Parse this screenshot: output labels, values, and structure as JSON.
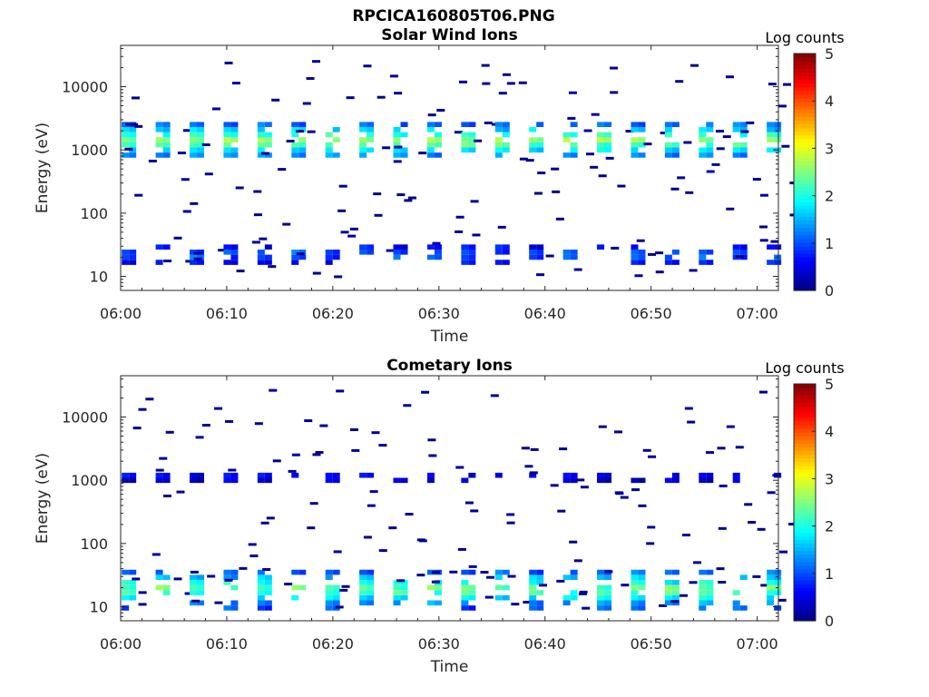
{
  "figure_title": "RPCICA160805T06.PNG",
  "colorbar": {
    "label": "Log counts",
    "ticks": [
      "0",
      "1",
      "2",
      "3",
      "4",
      "5"
    ],
    "range": [
      0,
      5
    ],
    "colormap": "jet"
  },
  "chart_data": [
    {
      "type": "heatmap",
      "title": "Solar Wind Ions",
      "xlabel": "Time",
      "ylabel": "Energy (eV)",
      "y_scale": "log",
      "ylim": [
        6,
        45000
      ],
      "x_ticks": [
        "06:00",
        "06:10",
        "06:20",
        "06:30",
        "06:40",
        "06:50",
        "07:00"
      ],
      "x_range_minutes": [
        0,
        62
      ],
      "y_ticks": [
        "10",
        "100",
        "1000",
        "10000"
      ],
      "color_label": "Log counts",
      "color_range": [
        0,
        5
      ],
      "bands": [
        {
          "name": "main",
          "energy_min": 700,
          "energy_max": 2800,
          "peak_log_counts": 2.9,
          "sweep_period_min": 3.2
        },
        {
          "name": "low",
          "energy_min": 14,
          "energy_max": 35,
          "peak_log_counts": 1.5,
          "sweep_period_min": 3.2
        }
      ]
    },
    {
      "type": "heatmap",
      "title": "Cometary Ions",
      "xlabel": "Time",
      "ylabel": "Energy (eV)",
      "y_scale": "log",
      "ylim": [
        6,
        45000
      ],
      "x_ticks": [
        "06:00",
        "06:10",
        "06:20",
        "06:30",
        "06:40",
        "06:50",
        "07:00"
      ],
      "x_range_minutes": [
        0,
        62
      ],
      "y_ticks": [
        "10",
        "100",
        "1000",
        "10000"
      ],
      "color_label": "Log counts",
      "color_range": [
        0,
        5
      ],
      "bands": [
        {
          "name": "main",
          "energy_min": 900,
          "energy_max": 1400,
          "peak_log_counts": 1.0,
          "sweep_period_min": 3.2
        },
        {
          "name": "low",
          "energy_min": 9,
          "energy_max": 40,
          "peak_log_counts": 2.8,
          "sweep_period_min": 3.2
        }
      ]
    }
  ]
}
